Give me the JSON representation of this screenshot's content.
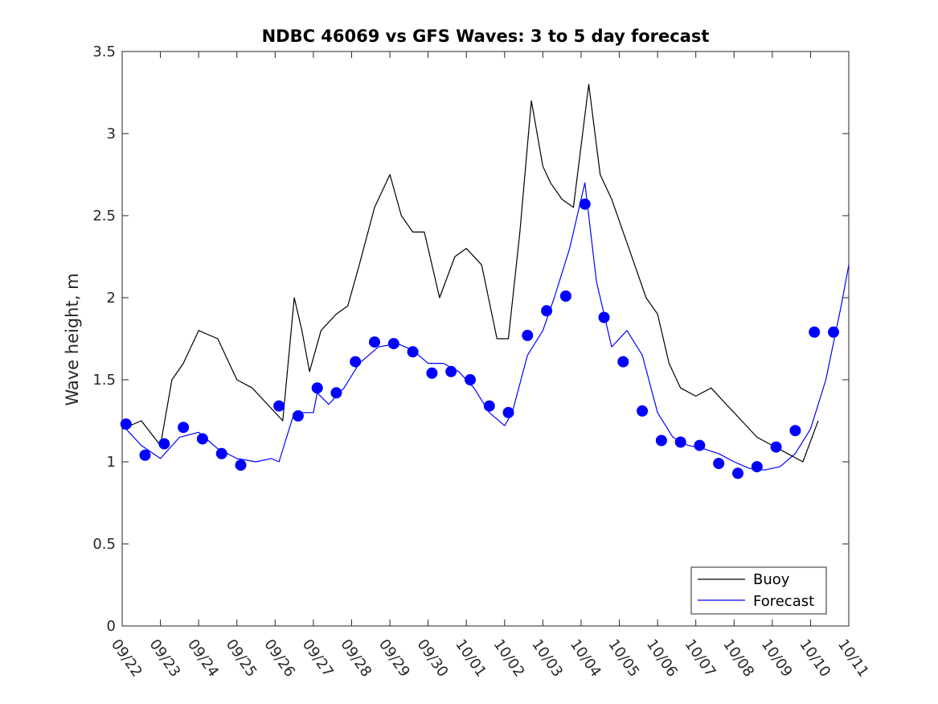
{
  "chart_data": {
    "type": "line",
    "title": "NDBC 46069 vs GFS Waves: 3 to 5 day forecast",
    "xlabel": "",
    "ylabel": "Wave height, m",
    "ylim": [
      0,
      3.5
    ],
    "yticks": [
      "0",
      "0.5",
      "1",
      "1.5",
      "2",
      "2.5",
      "3",
      "3.5"
    ],
    "xlim_days": [
      0,
      19
    ],
    "xticks": [
      "09/22",
      "09/23",
      "09/24",
      "09/25",
      "09/26",
      "09/27",
      "09/28",
      "09/29",
      "09/30",
      "10/01",
      "10/02",
      "10/03",
      "10/04",
      "10/05",
      "10/06",
      "10/07",
      "10/08",
      "10/09",
      "10/10",
      "10/11"
    ],
    "legend": {
      "position": "bottom-right",
      "entries": [
        "Buoy",
        "Forecast"
      ]
    },
    "colors": {
      "buoy": "#000000",
      "forecast": "#0000ff",
      "markers": "#0000ff",
      "axis": "#262626"
    },
    "series": [
      {
        "name": "Buoy",
        "x": [
          0,
          0.5,
          1,
          1.3,
          1.6,
          2,
          2.5,
          3,
          3.4,
          3.8,
          4.2,
          4.5,
          4.7,
          4.9,
          5.2,
          5.6,
          5.9,
          6.2,
          6.6,
          7,
          7.3,
          7.6,
          7.9,
          8.3,
          8.7,
          9,
          9.4,
          9.8,
          10.1,
          10.4,
          10.7,
          11,
          11.2,
          11.5,
          11.8,
          12.2,
          12.5,
          12.8,
          13.1,
          13.4,
          13.7,
          14,
          14.3,
          14.6,
          15,
          15.4,
          15.8,
          16.2,
          16.6,
          17,
          17.4,
          17.8,
          18.2
        ],
        "y": [
          1.2,
          1.25,
          1.1,
          1.5,
          1.6,
          1.8,
          1.75,
          1.5,
          1.45,
          1.35,
          1.25,
          2.0,
          1.8,
          1.55,
          1.8,
          1.9,
          1.95,
          2.2,
          2.55,
          2.75,
          2.5,
          2.4,
          2.4,
          2.0,
          2.25,
          2.3,
          2.2,
          1.75,
          1.75,
          2.4,
          3.2,
          2.8,
          2.7,
          2.6,
          2.55,
          3.3,
          2.75,
          2.6,
          2.4,
          2.2,
          2.0,
          1.9,
          1.6,
          1.45,
          1.4,
          1.45,
          1.35,
          1.25,
          1.15,
          1.1,
          1.05,
          1.0,
          1.25
        ]
      },
      {
        "name": "Forecast",
        "x": [
          0.1,
          0.5,
          1.0,
          1.5,
          2.0,
          2.5,
          3.0,
          3.5,
          3.9,
          4.1,
          4.5,
          5.0,
          5.1,
          5.4,
          5.8,
          6.2,
          6.7,
          7.2,
          7.6,
          8.0,
          8.4,
          8.8,
          9.2,
          9.6,
          10.0,
          10.2,
          10.6,
          11.0,
          11.3,
          11.7,
          12.1,
          12.4,
          12.8,
          13.2,
          13.6,
          14.0,
          14.4,
          14.8,
          15.2,
          15.6,
          16.0,
          16.4,
          16.8,
          17.2,
          17.6,
          18.0,
          18.4,
          18.8,
          19.0
        ],
        "y": [
          1.2,
          1.1,
          1.02,
          1.15,
          1.18,
          1.08,
          1.02,
          1.0,
          1.02,
          1.0,
          1.3,
          1.3,
          1.42,
          1.35,
          1.45,
          1.6,
          1.7,
          1.72,
          1.68,
          1.6,
          1.6,
          1.55,
          1.45,
          1.3,
          1.22,
          1.3,
          1.65,
          1.8,
          2.0,
          2.3,
          2.7,
          2.1,
          1.7,
          1.8,
          1.65,
          1.3,
          1.15,
          1.1,
          1.08,
          1.05,
          1.0,
          0.96,
          0.95,
          0.97,
          1.05,
          1.2,
          1.5,
          1.95,
          2.2
        ]
      }
    ],
    "markers": {
      "name": "Forecast points",
      "x": [
        0.1,
        0.6,
        1.1,
        1.6,
        2.1,
        2.6,
        3.1,
        4.1,
        4.6,
        5.1,
        5.6,
        6.1,
        6.6,
        7.1,
        7.6,
        8.1,
        8.6,
        9.1,
        9.6,
        10.1,
        10.6,
        11.1,
        11.6,
        12.1,
        12.6,
        13.1,
        13.6,
        14.1,
        14.6,
        15.1,
        15.6,
        16.1,
        16.6,
        17.1,
        17.6,
        18.1,
        18.6
      ],
      "y": [
        1.23,
        1.04,
        1.11,
        1.21,
        1.14,
        1.05,
        0.98,
        1.34,
        1.28,
        1.45,
        1.42,
        1.61,
        1.73,
        1.72,
        1.67,
        1.54,
        1.55,
        1.5,
        1.34,
        1.3,
        1.77,
        1.92,
        2.01,
        2.57,
        1.88,
        1.61,
        1.31,
        1.13,
        1.12,
        1.1,
        0.99,
        0.93,
        0.97,
        1.09,
        1.19,
        1.79,
        1.79
      ]
    }
  }
}
